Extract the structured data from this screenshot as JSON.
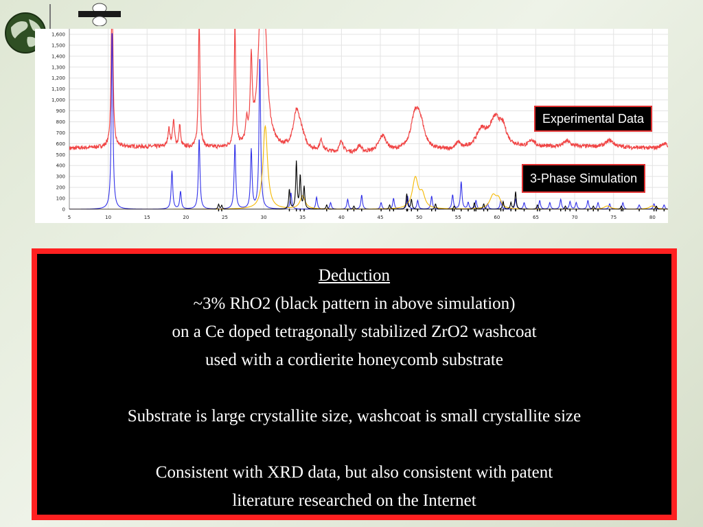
{
  "colors": {
    "experimental": "#f04545",
    "blue_phase": "#3030e8",
    "yellow_phase": "#f5b800",
    "black_phase": "#000000",
    "box_border": "#ff2020"
  },
  "icons": {
    "logo": "globe-logo-icon",
    "badge": "iso-badge-icon"
  },
  "legend": {
    "experimental": "Experimental Data",
    "simulation": "3-Phase Simulation"
  },
  "deduction": {
    "heading": "Deduction",
    "lines": [
      "~3% RhO2 (black pattern in above simulation)",
      "on a Ce doped tetragonally stabilized ZrO2 washcoat",
      "used with a cordierite honeycomb substrate",
      "",
      "Substrate is large crystallite size, washcoat is small crystallite size",
      "",
      "Consistent with XRD data, but also consistent with patent",
      "literature researched on the Internet"
    ]
  },
  "chart_data": {
    "type": "line",
    "title": "",
    "xlabel": "",
    "ylabel": "",
    "xlim": [
      5,
      82
    ],
    "ylim": [
      0,
      1650
    ],
    "x_ticks": [
      "5",
      "10",
      "15",
      "20",
      "25",
      "30",
      "35",
      "40",
      "45",
      "50",
      "55",
      "60",
      "65",
      "70",
      "75",
      "80"
    ],
    "y_ticks": [
      "0",
      "100",
      "200",
      "300",
      "400",
      "500",
      "600",
      "700",
      "800",
      "900",
      "1,000",
      "1,100",
      "1,200",
      "1,300",
      "1,400",
      "1,500",
      "1,600"
    ],
    "grid": true,
    "series": [
      {
        "name": "Experimental Data",
        "color": "#f04545",
        "baseline": 540,
        "noise": 18,
        "peaks": [
          [
            10.5,
            1700,
            0.12
          ],
          [
            17.8,
            160,
            0.15
          ],
          [
            18.4,
            230,
            0.15
          ],
          [
            19.2,
            200,
            0.12
          ],
          [
            21.7,
            1200,
            0.12
          ],
          [
            26.3,
            1100,
            0.12
          ],
          [
            27.8,
            180,
            0.15
          ],
          [
            28.4,
            700,
            0.15
          ],
          [
            29.7,
            1200,
            0.5
          ],
          [
            30.1,
            700,
            0.4
          ],
          [
            34.2,
            300,
            0.5
          ],
          [
            34.8,
            130,
            0.6
          ],
          [
            37.4,
            100,
            0.25
          ],
          [
            40.0,
            110,
            0.25
          ],
          [
            42.3,
            60,
            0.3
          ],
          [
            45.3,
            150,
            0.6
          ],
          [
            49.5,
            320,
            0.7
          ],
          [
            50.2,
            180,
            0.6
          ],
          [
            55.0,
            60,
            0.3
          ],
          [
            58.0,
            150,
            0.8
          ],
          [
            59.8,
            260,
            0.9
          ],
          [
            60.8,
            120,
            0.5
          ],
          [
            64.5,
            60,
            0.4
          ],
          [
            69.0,
            50,
            0.5
          ],
          [
            74.5,
            60,
            0.6
          ],
          [
            81.5,
            50,
            0.5
          ]
        ]
      },
      {
        "name": "",
        "color": "#3030e8",
        "baseline": 0,
        "noise": 0,
        "peaks": [
          [
            10.5,
            1650,
            0.12
          ],
          [
            18.2,
            350,
            0.12
          ],
          [
            19.3,
            160,
            0.12
          ],
          [
            21.7,
            650,
            0.12
          ],
          [
            26.3,
            600,
            0.12
          ],
          [
            28.4,
            540,
            0.12
          ],
          [
            29.5,
            1400,
            0.12
          ],
          [
            33.5,
            150,
            0.12
          ],
          [
            36.8,
            110,
            0.12
          ],
          [
            38.6,
            60,
            0.12
          ],
          [
            40.8,
            90,
            0.12
          ],
          [
            42.6,
            130,
            0.12
          ],
          [
            45.1,
            60,
            0.12
          ],
          [
            46.7,
            100,
            0.12
          ],
          [
            48.5,
            120,
            0.12
          ],
          [
            49.8,
            80,
            0.12
          ],
          [
            51.6,
            120,
            0.12
          ],
          [
            54.3,
            130,
            0.12
          ],
          [
            55.4,
            250,
            0.12
          ],
          [
            56.3,
            60,
            0.12
          ],
          [
            57.3,
            80,
            0.12
          ],
          [
            58.8,
            50,
            0.12
          ],
          [
            60.5,
            80,
            0.12
          ],
          [
            62.4,
            90,
            0.12
          ],
          [
            63.5,
            60,
            0.12
          ],
          [
            65.5,
            80,
            0.12
          ],
          [
            66.8,
            60,
            0.12
          ],
          [
            68.2,
            90,
            0.12
          ],
          [
            69.4,
            70,
            0.12
          ],
          [
            70.2,
            60,
            0.12
          ],
          [
            71.7,
            80,
            0.12
          ],
          [
            73.0,
            60,
            0.12
          ],
          [
            74.5,
            50,
            0.12
          ],
          [
            76.2,
            60,
            0.12
          ],
          [
            78.3,
            40,
            0.12
          ],
          [
            80.2,
            50,
            0.12
          ],
          [
            81.5,
            40,
            0.12
          ]
        ]
      },
      {
        "name": "",
        "color": "#f5b800",
        "baseline": 0,
        "noise": 0,
        "peaks": [
          [
            30.2,
            760,
            0.35
          ],
          [
            35.0,
            120,
            0.4
          ],
          [
            49.5,
            280,
            0.45
          ],
          [
            50.4,
            120,
            0.4
          ],
          [
            59.5,
            120,
            0.5
          ],
          [
            60.2,
            80,
            0.4
          ],
          [
            74.2,
            30,
            0.5
          ],
          [
            80.0,
            30,
            0.5
          ]
        ]
      },
      {
        "name": "",
        "color": "#000000",
        "baseline": 0,
        "noise": 0,
        "peaks": [
          [
            24.2,
            45,
            0.1
          ],
          [
            24.6,
            35,
            0.1
          ],
          [
            33.3,
            180,
            0.1
          ],
          [
            34.2,
            430,
            0.1
          ],
          [
            34.7,
            300,
            0.1
          ],
          [
            35.2,
            200,
            0.1
          ],
          [
            38.1,
            40,
            0.1
          ],
          [
            41.6,
            30,
            0.1
          ],
          [
            46.2,
            40,
            0.1
          ],
          [
            48.4,
            140,
            0.1
          ],
          [
            49.0,
            90,
            0.1
          ],
          [
            52.1,
            50,
            0.1
          ],
          [
            54.5,
            30,
            0.1
          ],
          [
            57.1,
            60,
            0.1
          ],
          [
            58.3,
            50,
            0.1
          ],
          [
            60.8,
            70,
            0.1
          ],
          [
            61.8,
            60,
            0.1
          ],
          [
            62.4,
            160,
            0.1
          ],
          [
            65.2,
            40,
            0.1
          ],
          [
            68.8,
            30,
            0.1
          ],
          [
            72.4,
            30,
            0.1
          ],
          [
            76.0,
            30,
            0.1
          ],
          [
            80.5,
            30,
            0.1
          ]
        ]
      }
    ]
  }
}
